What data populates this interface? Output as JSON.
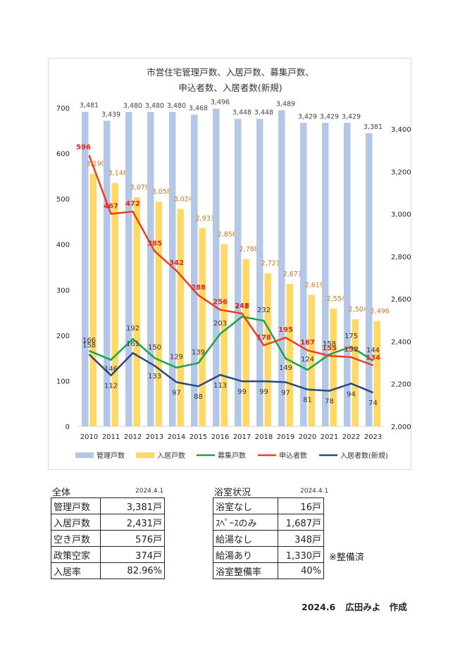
{
  "chart_data": {
    "type": "bar",
    "title_lines": [
      "市営住宅管理戸数、入居戸数、募集戸数、",
      "申込者数、入居者数(新規)"
    ],
    "categories": [
      "2010",
      "2011",
      "2012",
      "2013",
      "2014",
      "2015",
      "2016",
      "2017",
      "2018",
      "2019",
      "2020",
      "2021",
      "2022",
      "2023"
    ],
    "y_left_range": [
      0,
      700
    ],
    "y_left_ticks": [
      "0",
      "100",
      "200",
      "300",
      "400",
      "500",
      "600",
      "700"
    ],
    "y_right_range": [
      2000,
      3500
    ],
    "y_right_ticks": [
      "2,000",
      "2,200",
      "2,400",
      "2,600",
      "2,800",
      "3,000",
      "3,200",
      "3,400"
    ],
    "series": [
      {
        "name": "管理戸数",
        "type": "bar",
        "axis": "right",
        "color": "#b4c7e7",
        "values": [
          3481,
          3439,
          3480,
          3480,
          3480,
          3468,
          3496,
          3448,
          3448,
          3489,
          3429,
          3429,
          3429,
          3381
        ],
        "labels": [
          "3,481",
          "3,439",
          "3,480",
          "3,480",
          "3,480",
          "3,468",
          "3,496",
          "3,448",
          "3,448",
          "3,489",
          "3,429",
          "3,429",
          "3,429",
          "3,381"
        ]
      },
      {
        "name": "入居戸数",
        "type": "bar",
        "axis": "right",
        "color": "#ffd966",
        "values": [
          3190,
          3146,
          3079,
          3058,
          3024,
          2933,
          2858,
          2788,
          2721,
          2671,
          2619,
          2554,
          2504,
          2496
        ],
        "labels": [
          "3,190",
          "3,146",
          "3,079",
          "3,058",
          "3,024",
          "2,933",
          "2,858",
          "2,788",
          "2,721",
          "2,671",
          "2,619",
          "2,554",
          "2,504",
          "2,496"
        ]
      },
      {
        "name": "募集戸数",
        "type": "line",
        "axis": "left",
        "color": "#1aa34a",
        "values": [
          166,
          146,
          192,
          150,
          129,
          139,
          203,
          241,
          232,
          149,
          124,
          158,
          175,
          144
        ]
      },
      {
        "name": "申込者数",
        "type": "line",
        "axis": "left",
        "color": "#e8401c",
        "values": [
          596,
          467,
          472,
          385,
          342,
          288,
          256,
          248,
          178,
          195,
          167,
          155,
          152,
          134
        ]
      },
      {
        "name": "入居者数(新規)",
        "type": "line",
        "axis": "left",
        "color": "#2a4a7f",
        "values": [
          158,
          112,
          161,
          133,
          97,
          88,
          113,
          99,
          99,
          97,
          81,
          78,
          94,
          74
        ]
      }
    ],
    "legend_position": "bottom"
  },
  "table_overall": {
    "title": "全体",
    "date": "2024.4.1",
    "rows": [
      {
        "k": "管理戸数",
        "v": "3,381戸"
      },
      {
        "k": "入居戸数",
        "v": "2,431戸"
      },
      {
        "k": "空き戸数",
        "v": "576戸"
      },
      {
        "k": "政策空家",
        "v": "374戸"
      },
      {
        "k": "入居率",
        "v": "82.96%"
      }
    ]
  },
  "table_bath": {
    "title": "浴室状況",
    "date": "2024.4.1",
    "rows": [
      {
        "k": "浴室なし",
        "v": "16戸"
      },
      {
        "k": "ｽﾍﾟｰｽのみ",
        "v": "1,687戸"
      },
      {
        "k": "給湯なし",
        "v": "348戸"
      },
      {
        "k": "給湯あり",
        "v": "1,330戸"
      },
      {
        "k": "浴室整備率",
        "v": "40%"
      }
    ],
    "note": "※整備済"
  },
  "footer": {
    "date": "2024.6",
    "author": "広田みよ　作成"
  }
}
